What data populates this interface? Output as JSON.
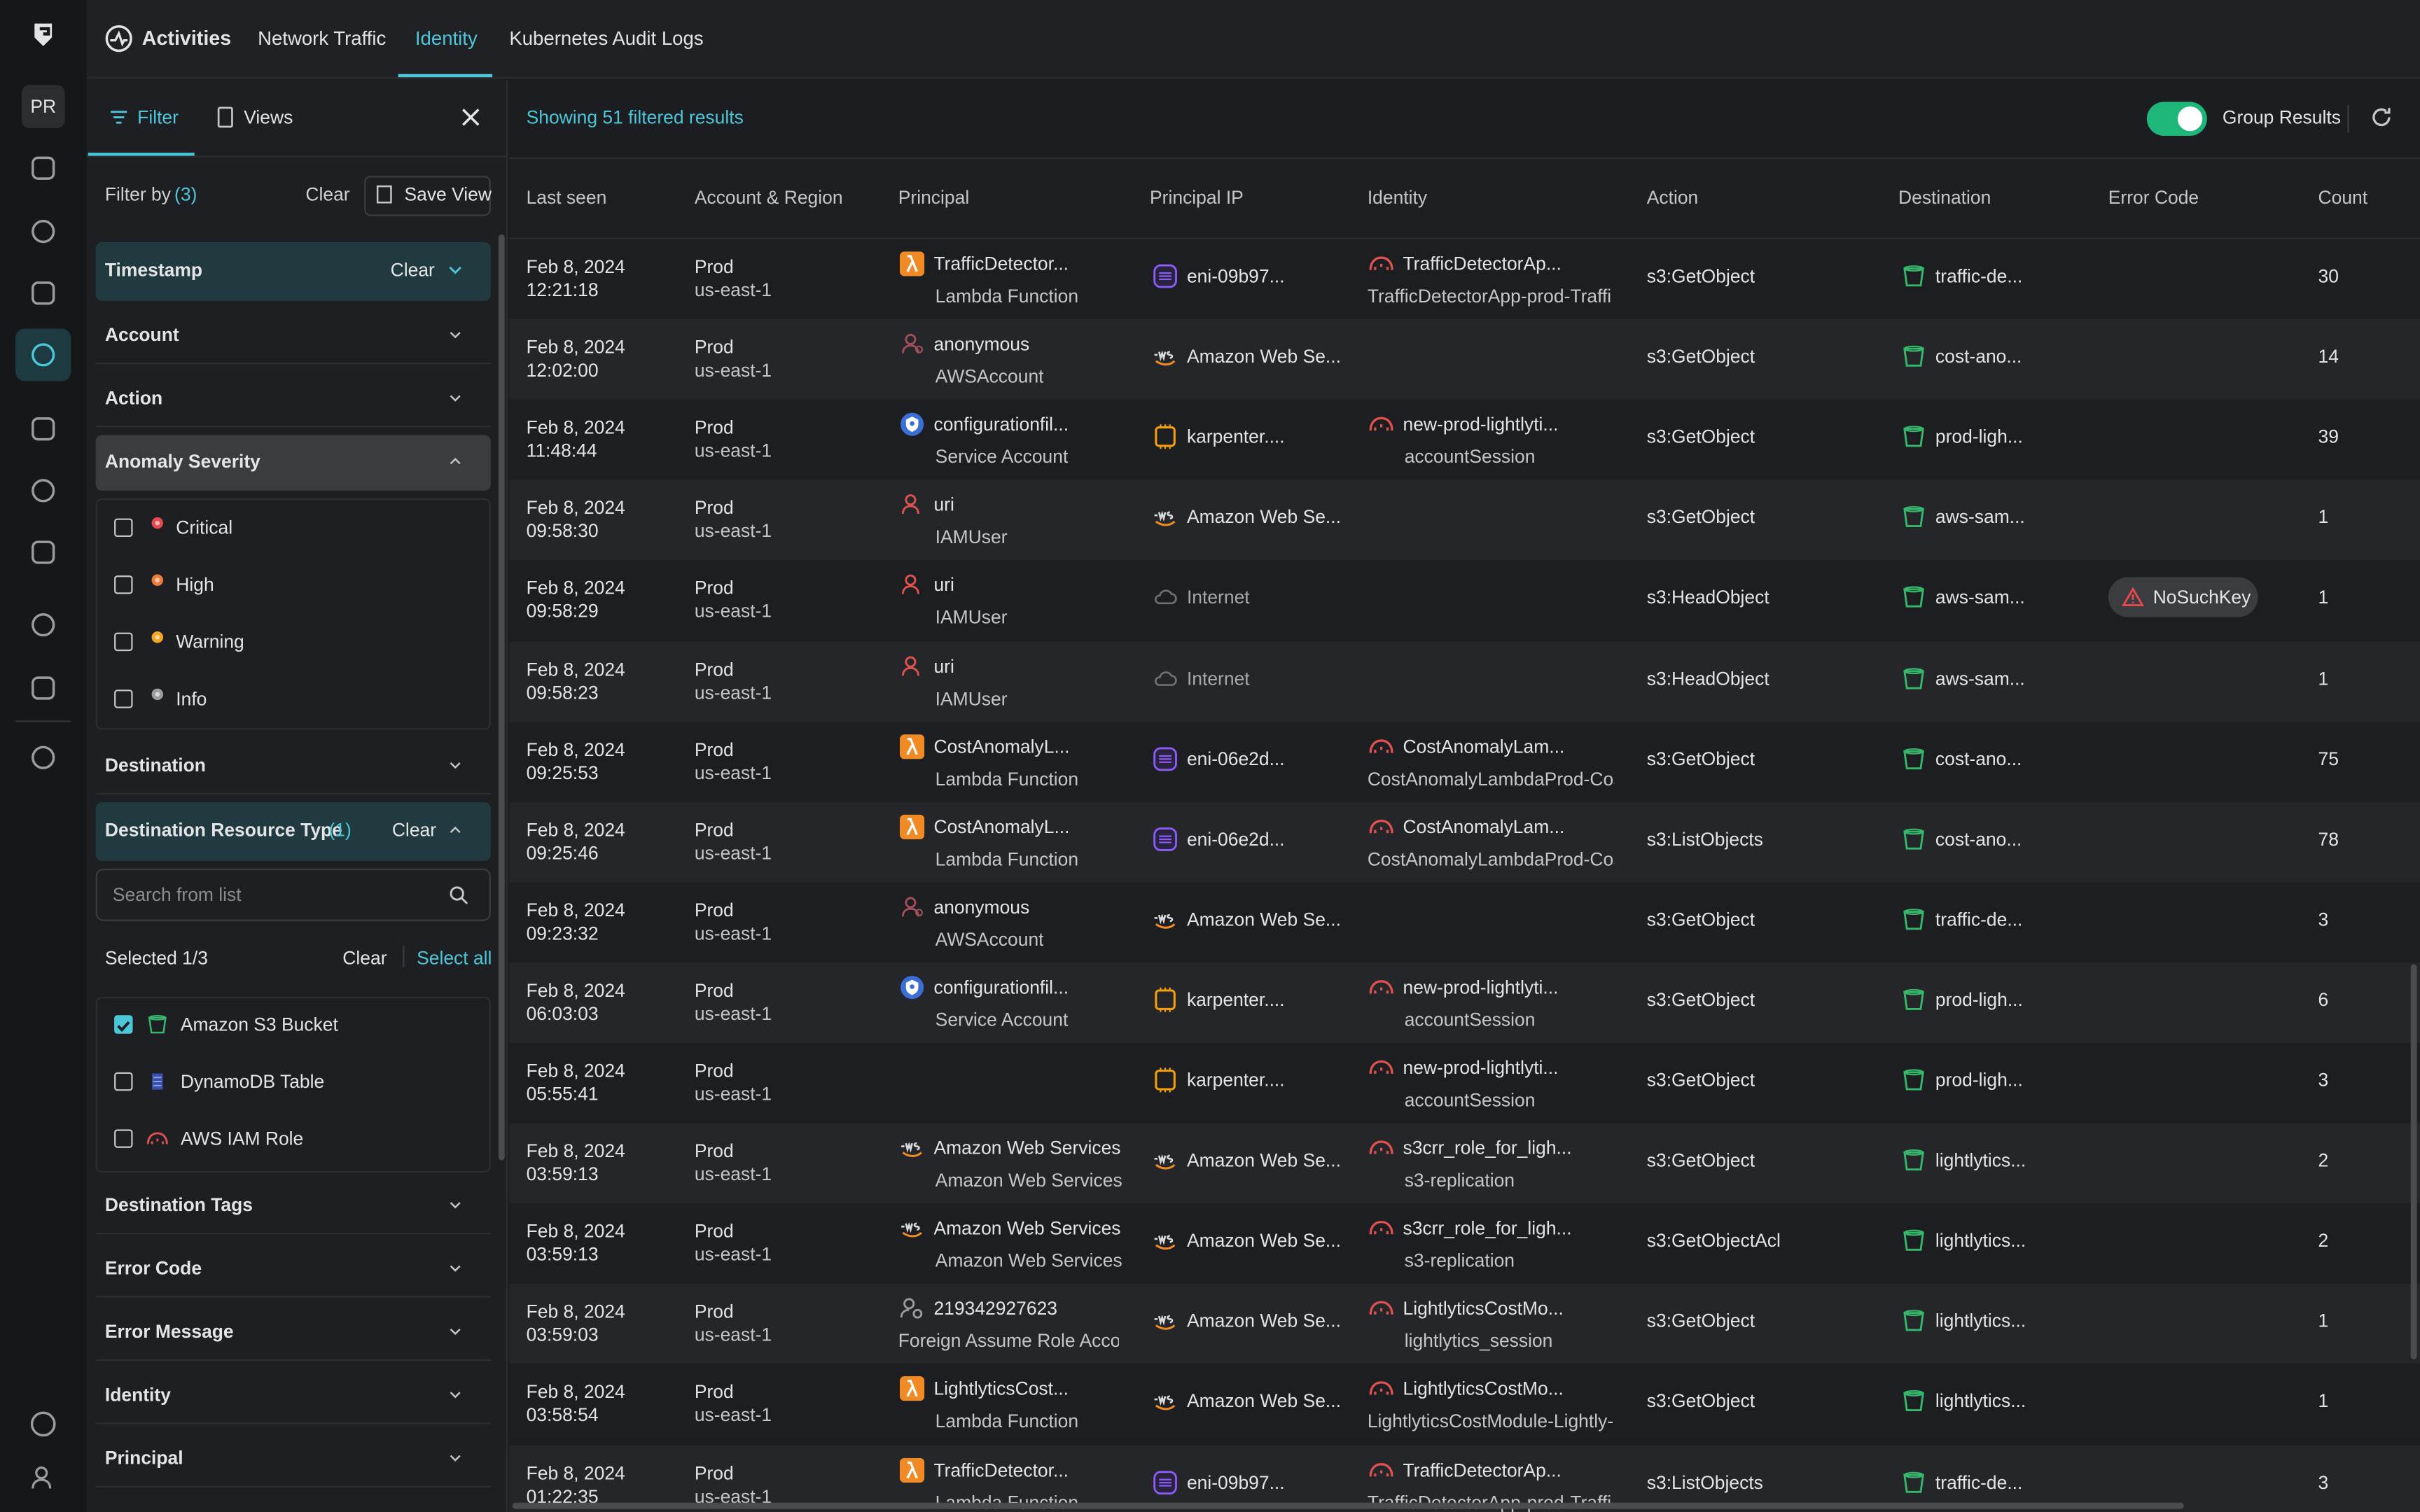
{
  "nav": {
    "avatar": "PR",
    "tabs": [
      "Activities",
      "Network Traffic",
      "Identity",
      "Kubernetes Audit Logs"
    ],
    "active_tab": 2
  },
  "filter": {
    "tabs": [
      "Filter",
      "Views"
    ],
    "title": "Filter by",
    "count": "(3)",
    "clear": "Clear",
    "save_view": "Save View",
    "timestamp": {
      "label": "Timestamp",
      "clear": "Clear"
    },
    "account": "Account",
    "action": "Action",
    "severity": {
      "label": "Anomaly Severity",
      "options": [
        {
          "label": "Critical",
          "color": "#e5484d"
        },
        {
          "label": "High",
          "color": "#f07a3a"
        },
        {
          "label": "Warning",
          "color": "#f5a524"
        },
        {
          "label": "Info",
          "color": "#9a9ca0"
        }
      ]
    },
    "destination": "Destination",
    "resource_type": {
      "label": "Destination Resource Type",
      "count": "(1)",
      "clear": "Clear",
      "search": "Search from list",
      "selected": "Selected 1/3",
      "clear_selection": "Clear",
      "select_all": "Select all",
      "options": [
        {
          "label": "Amazon S3 Bucket",
          "checked": true,
          "icon": "bucket"
        },
        {
          "label": "DynamoDB Table",
          "checked": false,
          "icon": "dynamo"
        },
        {
          "label": "AWS IAM Role",
          "checked": false,
          "icon": "role"
        }
      ]
    },
    "more": [
      "Destination Tags",
      "Error Code",
      "Error Message",
      "Identity",
      "Principal"
    ]
  },
  "table": {
    "summary": "Showing 51 filtered results",
    "group_label": "Group Results",
    "group_on": true,
    "columns": [
      "Last seen",
      "Account & Region",
      "Principal",
      "Principal IP",
      "Identity",
      "Action",
      "Destination",
      "Error Code",
      "Count"
    ],
    "rows": [
      {
        "date": "Feb 8, 2024",
        "time": "12:21:18",
        "account": "Prod",
        "region": "us-east-1",
        "principal": {
          "name": "TrafficDetector...",
          "type": "Lambda Function",
          "icon": "lambda"
        },
        "ip": {
          "name": "eni-09b97...",
          "icon": "eni"
        },
        "identity": {
          "name": "TrafficDetectorAp...",
          "sub": "TrafficDetectorApp-prod-Traffi"
        },
        "action": "s3:GetObject",
        "destination": "traffic-de...",
        "error": null,
        "count": 30
      },
      {
        "date": "Feb 8, 2024",
        "time": "12:02:00",
        "account": "Prod",
        "region": "us-east-1",
        "principal": {
          "name": "anonymous",
          "type": "AWSAccount",
          "icon": "anon"
        },
        "ip": {
          "name": "Amazon Web Se...",
          "icon": "aws"
        },
        "identity": null,
        "action": "s3:GetObject",
        "destination": "cost-ano...",
        "error": null,
        "count": 14
      },
      {
        "date": "Feb 8, 2024",
        "time": "11:48:44",
        "account": "Prod",
        "region": "us-east-1",
        "principal": {
          "name": "configurationfil...",
          "type": "Service Account",
          "icon": "service"
        },
        "ip": {
          "name": "karpenter....",
          "icon": "chip"
        },
        "identity": {
          "name": "new-prod-lightlyti...",
          "sub": "accountSession"
        },
        "action": "s3:GetObject",
        "destination": "prod-ligh...",
        "error": null,
        "count": 39
      },
      {
        "date": "Feb 8, 2024",
        "time": "09:58:30",
        "account": "Prod",
        "region": "us-east-1",
        "principal": {
          "name": "uri",
          "type": "IAMUser",
          "icon": "user"
        },
        "ip": {
          "name": "Amazon Web Se...",
          "icon": "aws"
        },
        "identity": null,
        "action": "s3:GetObject",
        "destination": "aws-sam...",
        "error": null,
        "count": 1
      },
      {
        "date": "Feb 8, 2024",
        "time": "09:58:29",
        "account": "Prod",
        "region": "us-east-1",
        "principal": {
          "name": "uri",
          "type": "IAMUser",
          "icon": "user"
        },
        "ip": {
          "name": "Internet",
          "icon": "cloud"
        },
        "identity": null,
        "action": "s3:HeadObject",
        "destination": "aws-sam...",
        "error": "NoSuchKey",
        "count": 1
      },
      {
        "date": "Feb 8, 2024",
        "time": "09:58:23",
        "account": "Prod",
        "region": "us-east-1",
        "principal": {
          "name": "uri",
          "type": "IAMUser",
          "icon": "user"
        },
        "ip": {
          "name": "Internet",
          "icon": "cloud"
        },
        "identity": null,
        "action": "s3:HeadObject",
        "destination": "aws-sam...",
        "error": null,
        "count": 1
      },
      {
        "date": "Feb 8, 2024",
        "time": "09:25:53",
        "account": "Prod",
        "region": "us-east-1",
        "principal": {
          "name": "CostAnomalyL...",
          "type": "Lambda Function",
          "icon": "lambda"
        },
        "ip": {
          "name": "eni-06e2d...",
          "icon": "eni"
        },
        "identity": {
          "name": "CostAnomalyLam...",
          "sub": "CostAnomalyLambdaProd-Cos"
        },
        "action": "s3:GetObject",
        "destination": "cost-ano...",
        "error": null,
        "count": 75
      },
      {
        "date": "Feb 8, 2024",
        "time": "09:25:46",
        "account": "Prod",
        "region": "us-east-1",
        "principal": {
          "name": "CostAnomalyL...",
          "type": "Lambda Function",
          "icon": "lambda"
        },
        "ip": {
          "name": "eni-06e2d...",
          "icon": "eni"
        },
        "identity": {
          "name": "CostAnomalyLam...",
          "sub": "CostAnomalyLambdaProd-Cos"
        },
        "action": "s3:ListObjects",
        "destination": "cost-ano...",
        "error": null,
        "count": 78
      },
      {
        "date": "Feb 8, 2024",
        "time": "09:23:32",
        "account": "Prod",
        "region": "us-east-1",
        "principal": {
          "name": "anonymous",
          "type": "AWSAccount",
          "icon": "anon"
        },
        "ip": {
          "name": "Amazon Web Se...",
          "icon": "aws"
        },
        "identity": null,
        "action": "s3:GetObject",
        "destination": "traffic-de...",
        "error": null,
        "count": 3
      },
      {
        "date": "Feb 8, 2024",
        "time": "06:03:03",
        "account": "Prod",
        "region": "us-east-1",
        "principal": {
          "name": "configurationfil...",
          "type": "Service Account",
          "icon": "service"
        },
        "ip": {
          "name": "karpenter....",
          "icon": "chip"
        },
        "identity": {
          "name": "new-prod-lightlyti...",
          "sub": "accountSession"
        },
        "action": "s3:GetObject",
        "destination": "prod-ligh...",
        "error": null,
        "count": 6
      },
      {
        "date": "Feb 8, 2024",
        "time": "05:55:41",
        "account": "Prod",
        "region": "us-east-1",
        "principal": null,
        "ip": {
          "name": "karpenter....",
          "icon": "chip"
        },
        "identity": {
          "name": "new-prod-lightlyti...",
          "sub": "accountSession"
        },
        "action": "s3:GetObject",
        "destination": "prod-ligh...",
        "error": null,
        "count": 3
      },
      {
        "date": "Feb 8, 2024",
        "time": "03:59:13",
        "account": "Prod",
        "region": "us-east-1",
        "principal": {
          "name": "Amazon Web Services",
          "type": "Amazon Web Services",
          "icon": "aws"
        },
        "ip": {
          "name": "Amazon Web Se...",
          "icon": "aws"
        },
        "identity": {
          "name": "s3crr_role_for_ligh...",
          "sub": "s3-replication"
        },
        "action": "s3:GetObject",
        "destination": "lightlytics...",
        "error": null,
        "count": 2
      },
      {
        "date": "Feb 8, 2024",
        "time": "03:59:13",
        "account": "Prod",
        "region": "us-east-1",
        "principal": {
          "name": "Amazon Web Services",
          "type": "Amazon Web Services",
          "icon": "aws"
        },
        "ip": {
          "name": "Amazon Web Se...",
          "icon": "aws"
        },
        "identity": {
          "name": "s3crr_role_for_ligh...",
          "sub": "s3-replication"
        },
        "action": "s3:GetObjectAcl",
        "destination": "lightlytics...",
        "error": null,
        "count": 2
      },
      {
        "date": "Feb 8, 2024",
        "time": "03:59:03",
        "account": "Prod",
        "region": "us-east-1",
        "principal": {
          "name": "219342927623",
          "type": "Foreign Assume Role Accou",
          "icon": "account"
        },
        "ip": {
          "name": "Amazon Web Se...",
          "icon": "aws"
        },
        "identity": {
          "name": "LightlyticsCostMo...",
          "sub": "lightlytics_session"
        },
        "action": "s3:GetObject",
        "destination": "lightlytics...",
        "error": null,
        "count": 1
      },
      {
        "date": "Feb 8, 2024",
        "time": "03:58:54",
        "account": "Prod",
        "region": "us-east-1",
        "principal": {
          "name": "LightlyticsCost...",
          "type": "Lambda Function",
          "icon": "lambda"
        },
        "ip": {
          "name": "Amazon Web Se...",
          "icon": "aws"
        },
        "identity": {
          "name": "LightlyticsCostMo...",
          "sub": "LightlyticsCostModule-Lightly-"
        },
        "action": "s3:GetObject",
        "destination": "lightlytics...",
        "error": null,
        "count": 1
      },
      {
        "date": "Feb 8, 2024",
        "time": "01:22:35",
        "account": "Prod",
        "region": "us-east-1",
        "principal": {
          "name": "TrafficDetector...",
          "type": "Lambda Function",
          "icon": "lambda"
        },
        "ip": {
          "name": "eni-09b97...",
          "icon": "eni"
        },
        "identity": {
          "name": "TrafficDetectorAp...",
          "sub": "TrafficDetectorApp-prod-Traffi"
        },
        "action": "s3:ListObjects",
        "destination": "traffic-de...",
        "error": null,
        "count": 3
      }
    ]
  }
}
